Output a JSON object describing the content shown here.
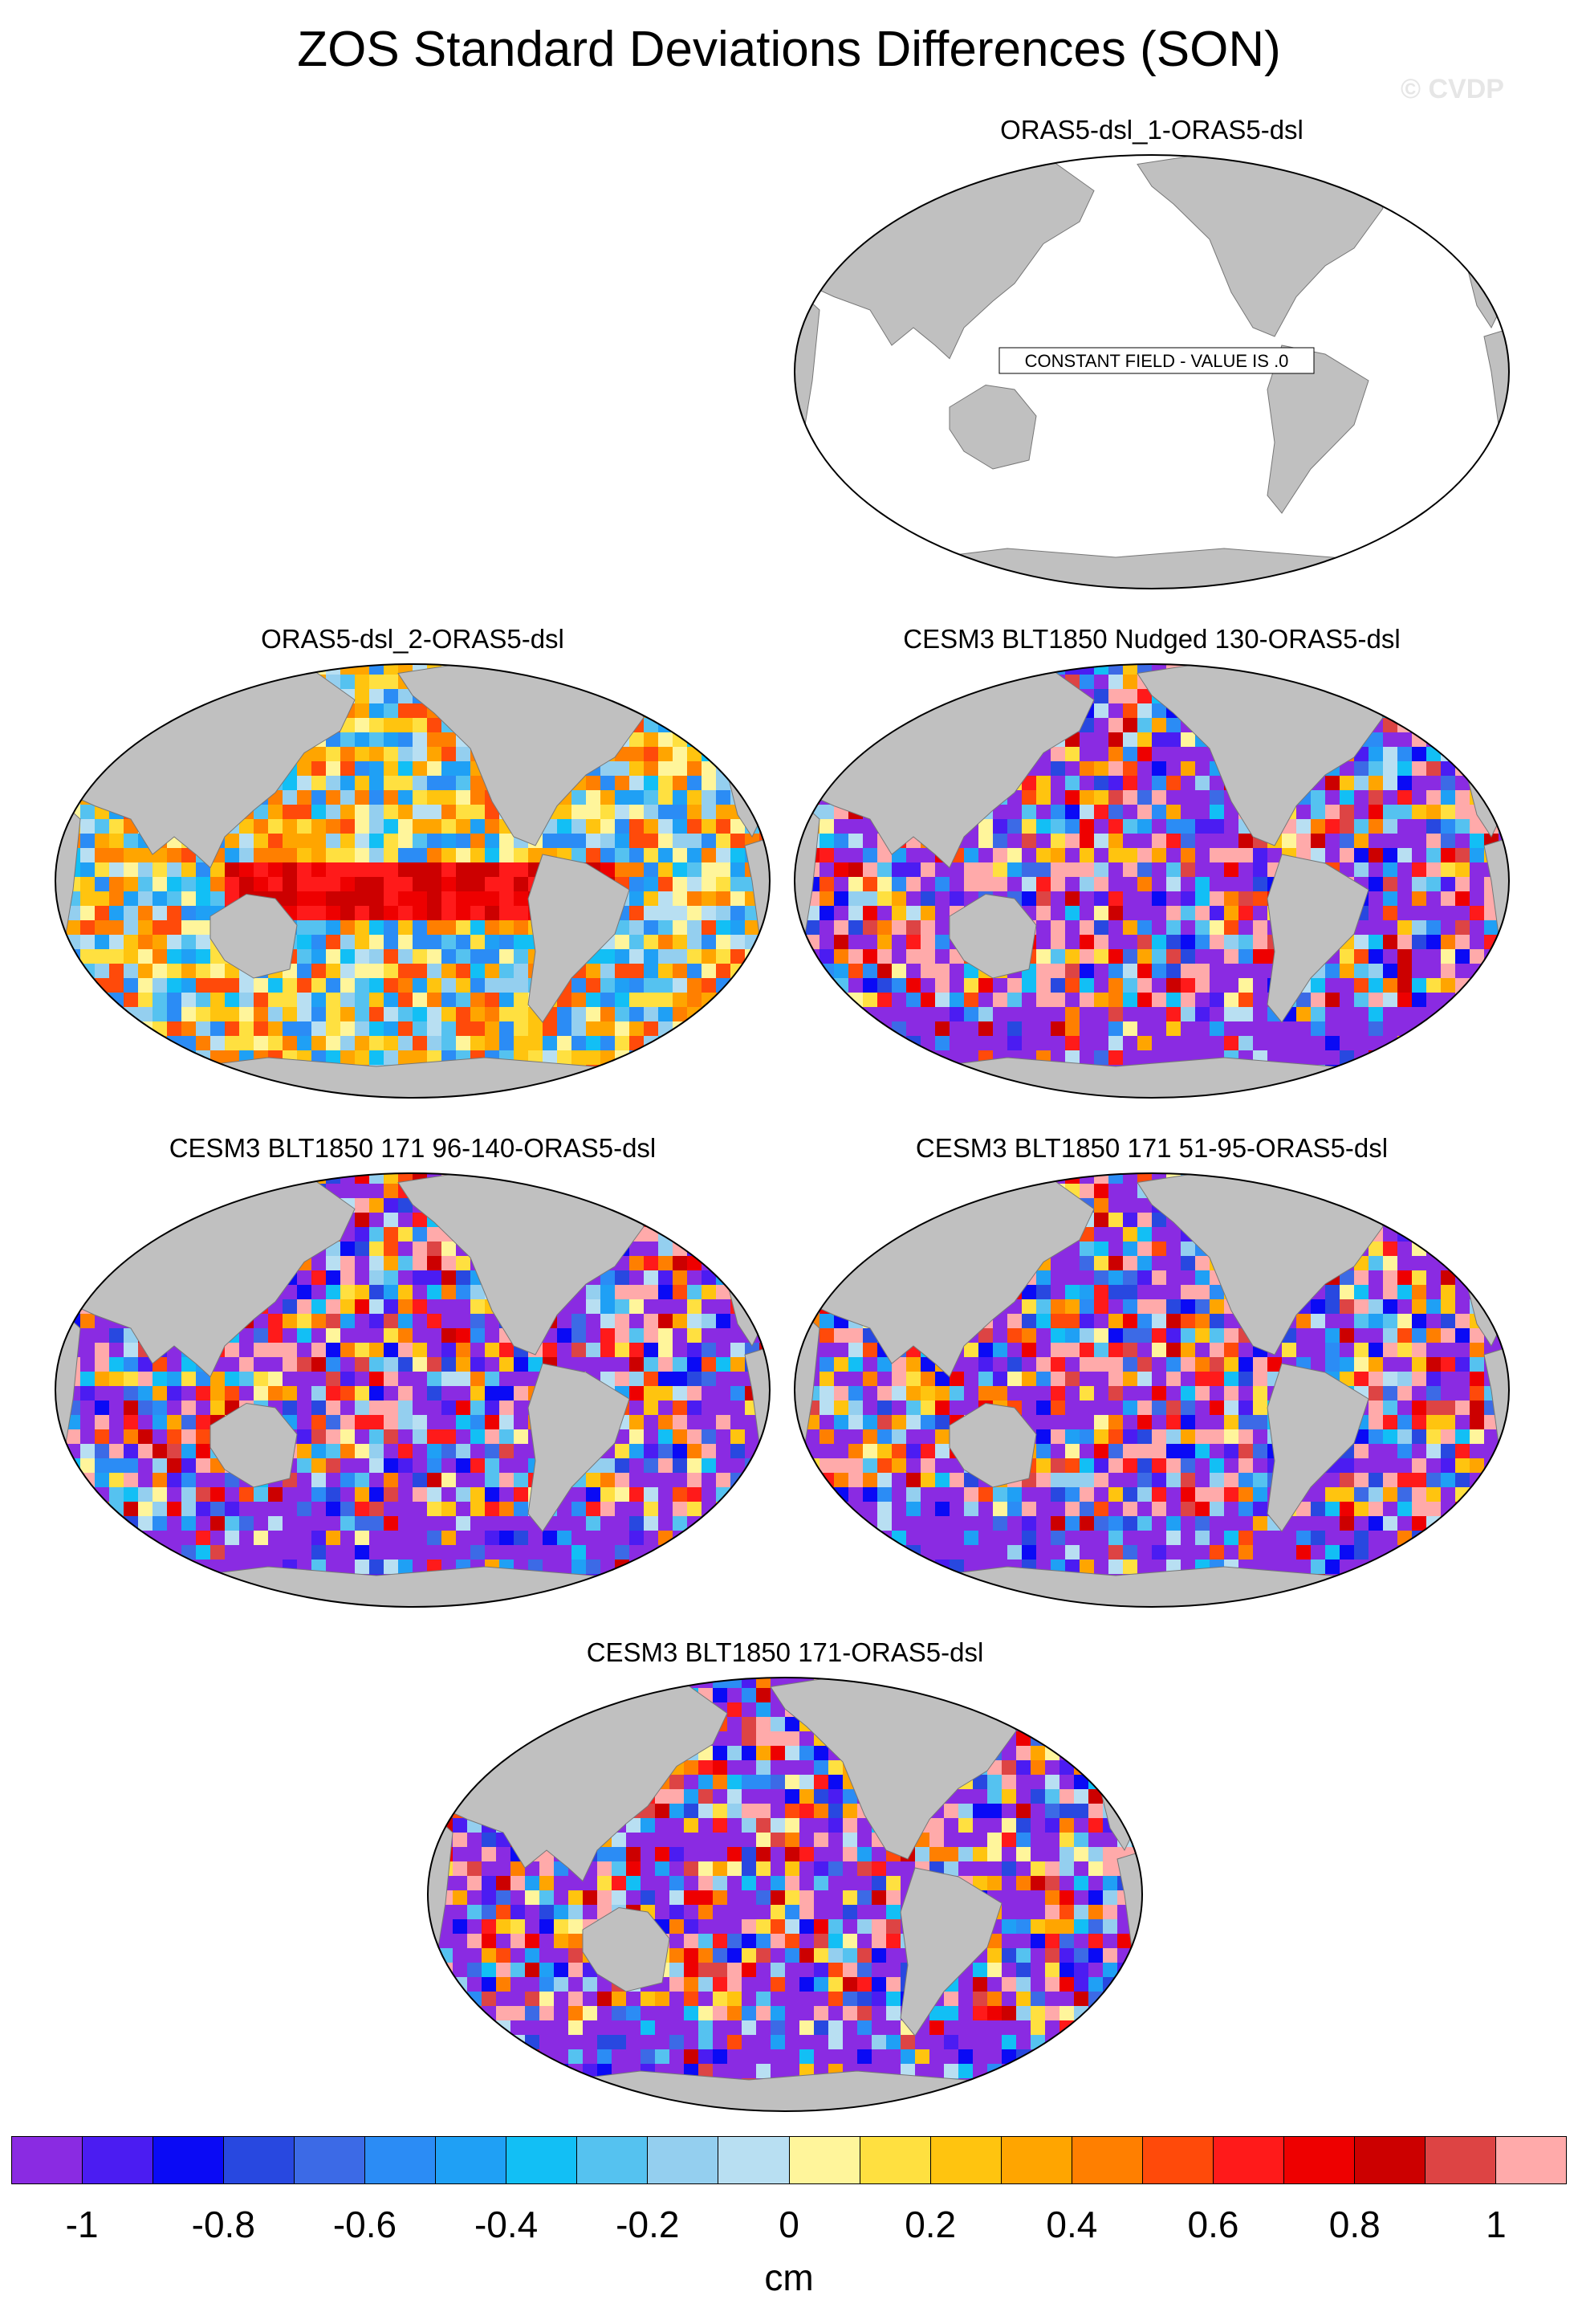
{
  "title": "ZOS Standard Deviations Differences (SON)",
  "watermark": "© CVDP",
  "panels": [
    {
      "id": "p1",
      "title": "ORAS5-dsl_1-ORAS5-dsl",
      "kind": "constant",
      "annotation": "CONSTANT FIELD - VALUE IS .0"
    },
    {
      "id": "p2",
      "title": "ORAS5-dsl_2-ORAS5-dsl",
      "kind": "field",
      "dominant": "warm"
    },
    {
      "id": "p3",
      "title": "CESM3 BLT1850 Nudged 130-ORAS5-dsl",
      "kind": "field",
      "dominant": "mixed"
    },
    {
      "id": "p4",
      "title": "CESM3 BLT1850 171 96-140-ORAS5-dsl",
      "kind": "field",
      "dominant": "mixed"
    },
    {
      "id": "p5",
      "title": "CESM3 BLT1850 171 51-95-ORAS5-dsl",
      "kind": "field",
      "dominant": "mixed"
    },
    {
      "id": "p6",
      "title": "CESM3 BLT1850 171-ORAS5-dsl",
      "kind": "field",
      "dominant": "mixed"
    }
  ],
  "colorbar": {
    "units": "cm",
    "tick_labels": [
      "-1",
      "-0.8",
      "-0.6",
      "-0.4",
      "-0.2",
      "0",
      "0.2",
      "0.4",
      "0.6",
      "0.8",
      "1"
    ],
    "colors": [
      "#8a2be2",
      "#4b1cf2",
      "#0a0af5",
      "#2848e0",
      "#3c6ae6",
      "#2b8cf5",
      "#1fa0f5",
      "#12bff5",
      "#55c2f0",
      "#94cfef",
      "#b8dff2",
      "#fff59b",
      "#ffe040",
      "#ffc40f",
      "#ffa500",
      "#ff7f00",
      "#ff4a0a",
      "#ff1a1a",
      "#ee0000",
      "#cc0000",
      "#dd4444",
      "#ffaaaa"
    ]
  },
  "map_style": {
    "land": "#c0c0c0",
    "ocean_constant": "#ffffff",
    "outline": "#000000"
  }
}
